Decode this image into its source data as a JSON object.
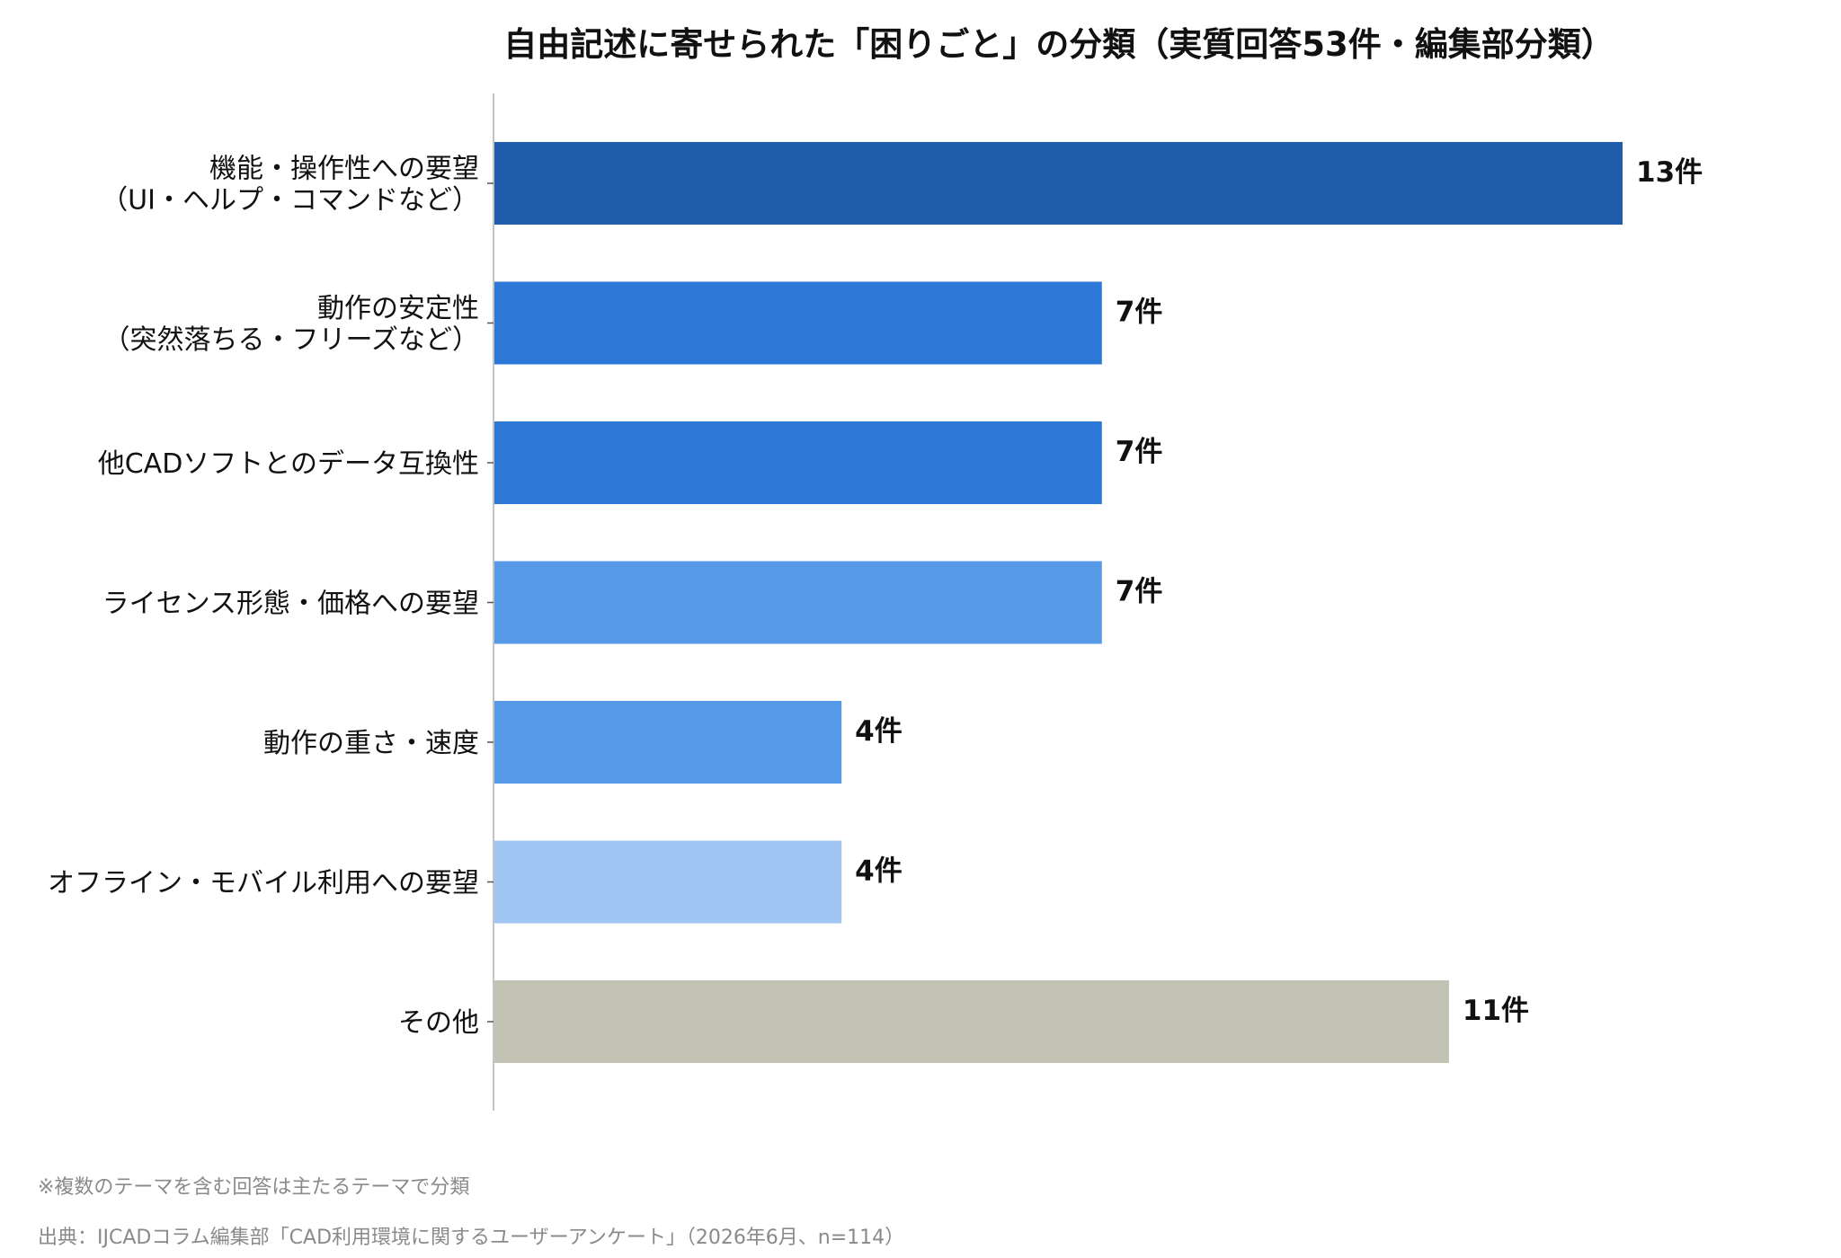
{
  "chart_data": {
    "type": "bar",
    "orientation": "horizontal",
    "title": "自由記述に寄せられた「困りごと」の分類（実質回答53件・編集部分類）",
    "value_suffix": "件",
    "xlim": [
      0,
      13
    ],
    "grid": false,
    "categories": [
      [
        "機能・操作性への要望",
        "（UI・ヘルプ・コマンドなど）"
      ],
      [
        "動作の安定性",
        "（突然落ちる・フリーズなど）"
      ],
      [
        "他CADソフトとのデータ互換性"
      ],
      [
        "ライセンス形態・価格への要望"
      ],
      [
        "動作の重さ・速度"
      ],
      [
        "オフライン・モバイル利用への要望"
      ],
      [
        "その他"
      ]
    ],
    "values": [
      13,
      7,
      7,
      7,
      4,
      4,
      11
    ],
    "value_labels": [
      "13件",
      "7件",
      "7件",
      "7件",
      "4件",
      "4件",
      "11件"
    ],
    "colors": [
      "#1f5dab",
      "#2b78d6",
      "#2b78d6",
      "#5699e6",
      "#5699e6",
      "#a0c5f2",
      "#c2c2b5"
    ]
  },
  "footnotes": {
    "note": "※複数のテーマを含む回答は主たるテーマで分類",
    "source": "出典：IJCADコラム編集部「CAD利用環境に関するユーザーアンケート」（2026年6月、n=114）"
  }
}
